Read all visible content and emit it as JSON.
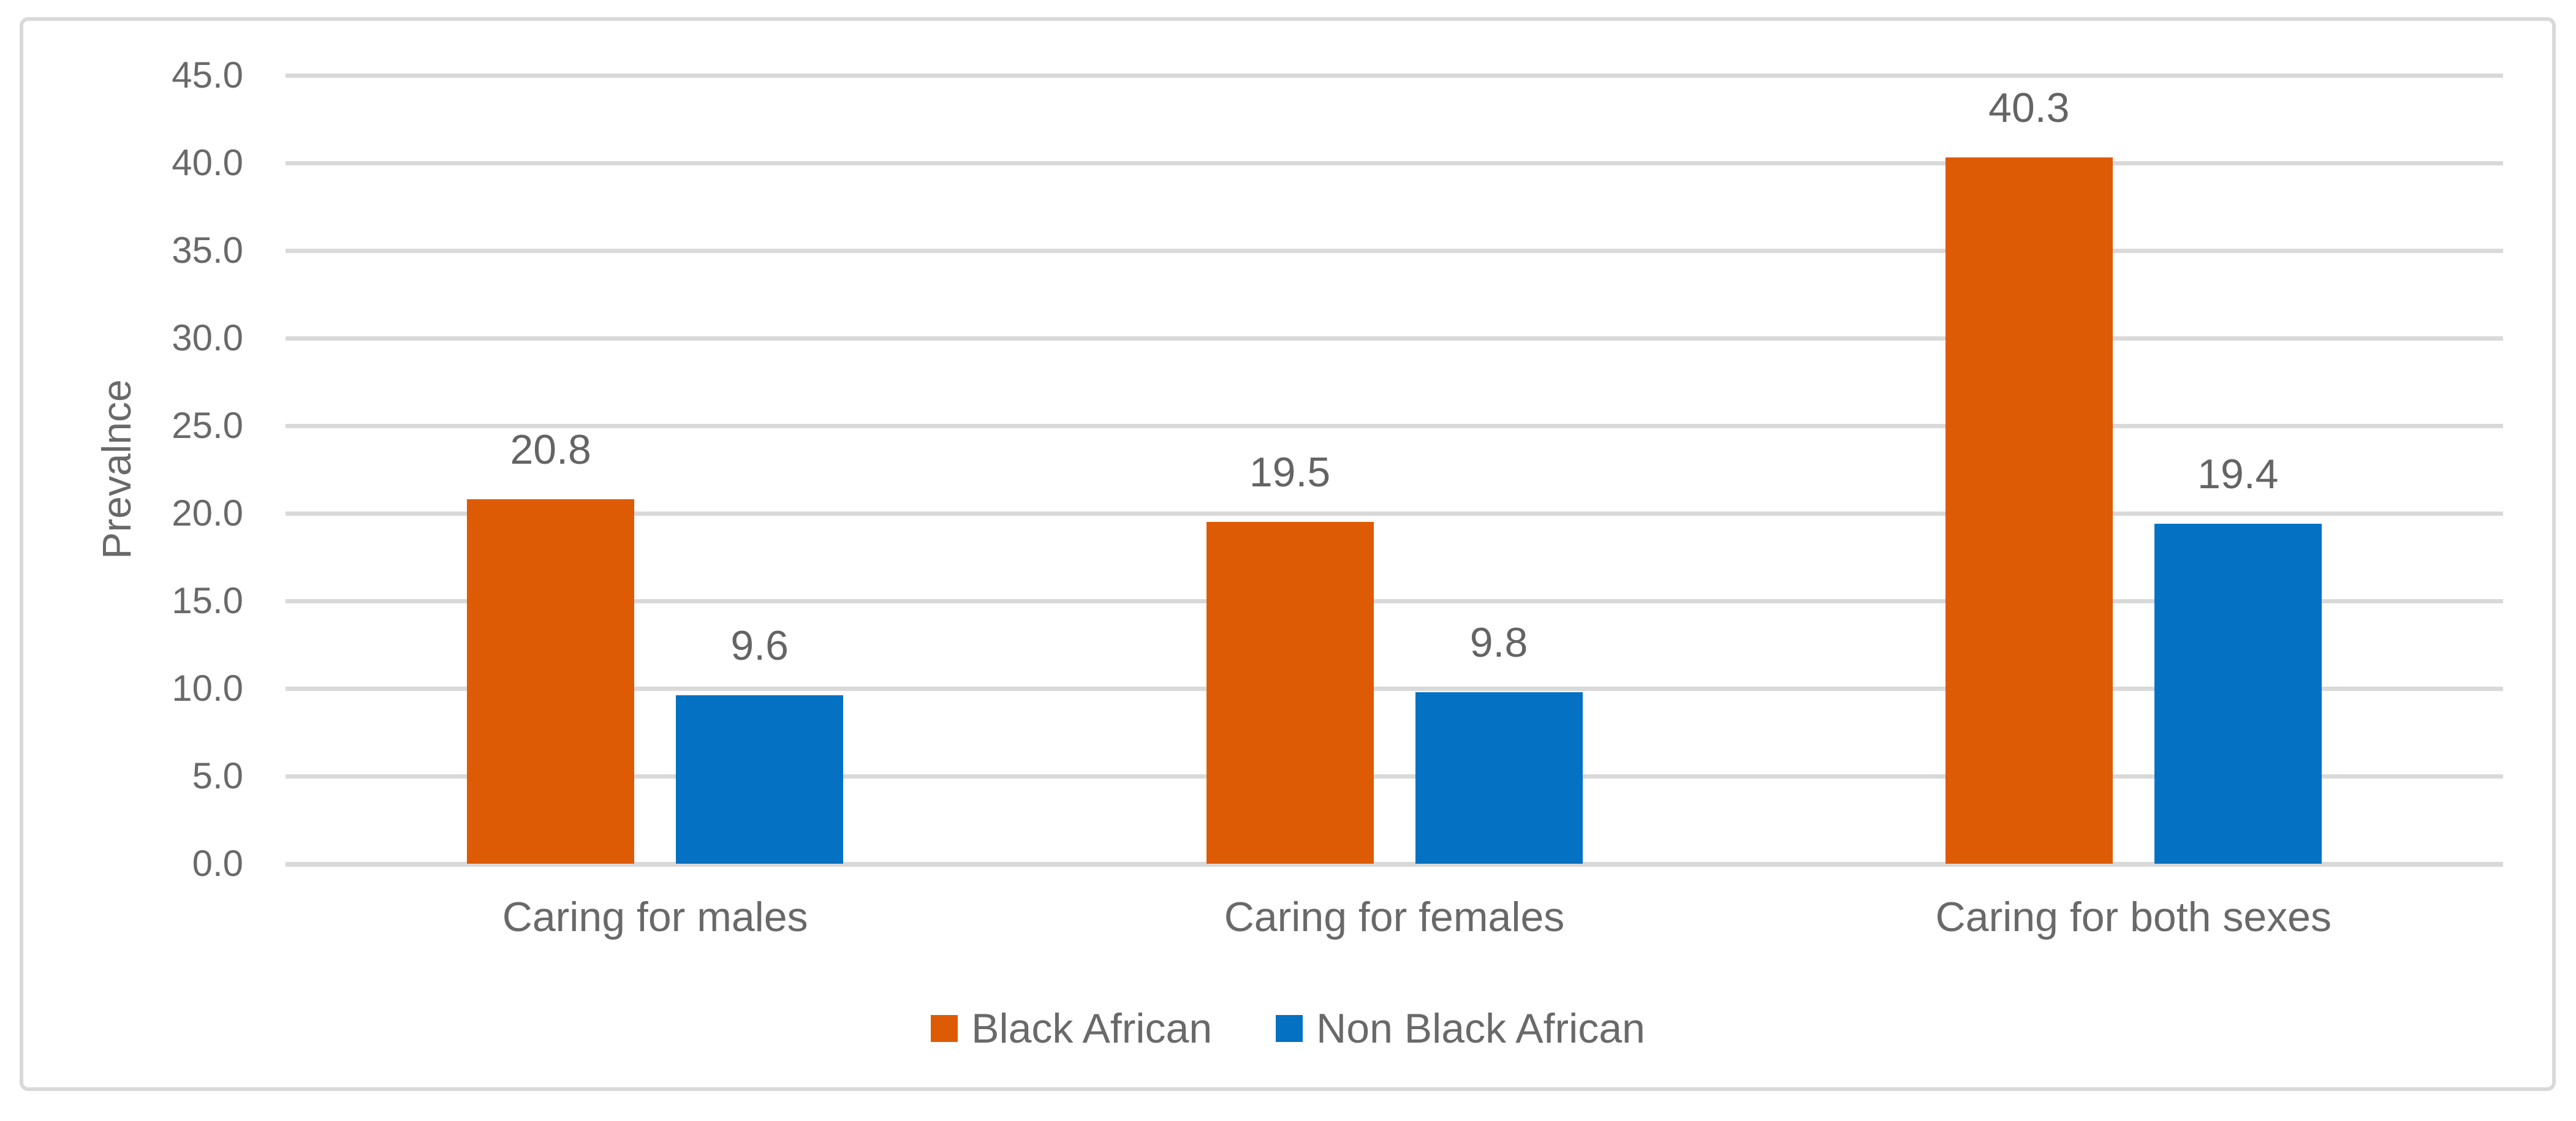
{
  "chart_data": {
    "type": "bar",
    "categories": [
      "Caring for males",
      "Caring for females",
      "Caring for both sexes"
    ],
    "series": [
      {
        "name": "Black African",
        "color": "#DE5B05",
        "values": [
          20.8,
          19.5,
          40.3
        ],
        "labels": [
          "20.8",
          "19.5",
          "40.3"
        ]
      },
      {
        "name": "Non Black African",
        "color": "#0471C2",
        "values": [
          9.6,
          9.8,
          19.4
        ],
        "labels": [
          "9.6",
          "9.8",
          "19.4"
        ]
      }
    ],
    "ylabel": "Prevalnce",
    "xlabel": "",
    "ylim": [
      0,
      45
    ],
    "ytick_step": 5,
    "ytick_labels": [
      "0.0",
      "5.0",
      "10.0",
      "15.0",
      "20.0",
      "25.0",
      "30.0",
      "35.0",
      "40.0",
      "45.0"
    ],
    "grid": "horizontal",
    "data_labels_position": "outside-end",
    "legend_position": "bottom",
    "colors": {
      "gridline": "#D9D9D9",
      "frame_border": "#D9D9D9",
      "tick_text": "#696969",
      "data_label_text": "#646464",
      "background": "#FFFFFF"
    }
  }
}
